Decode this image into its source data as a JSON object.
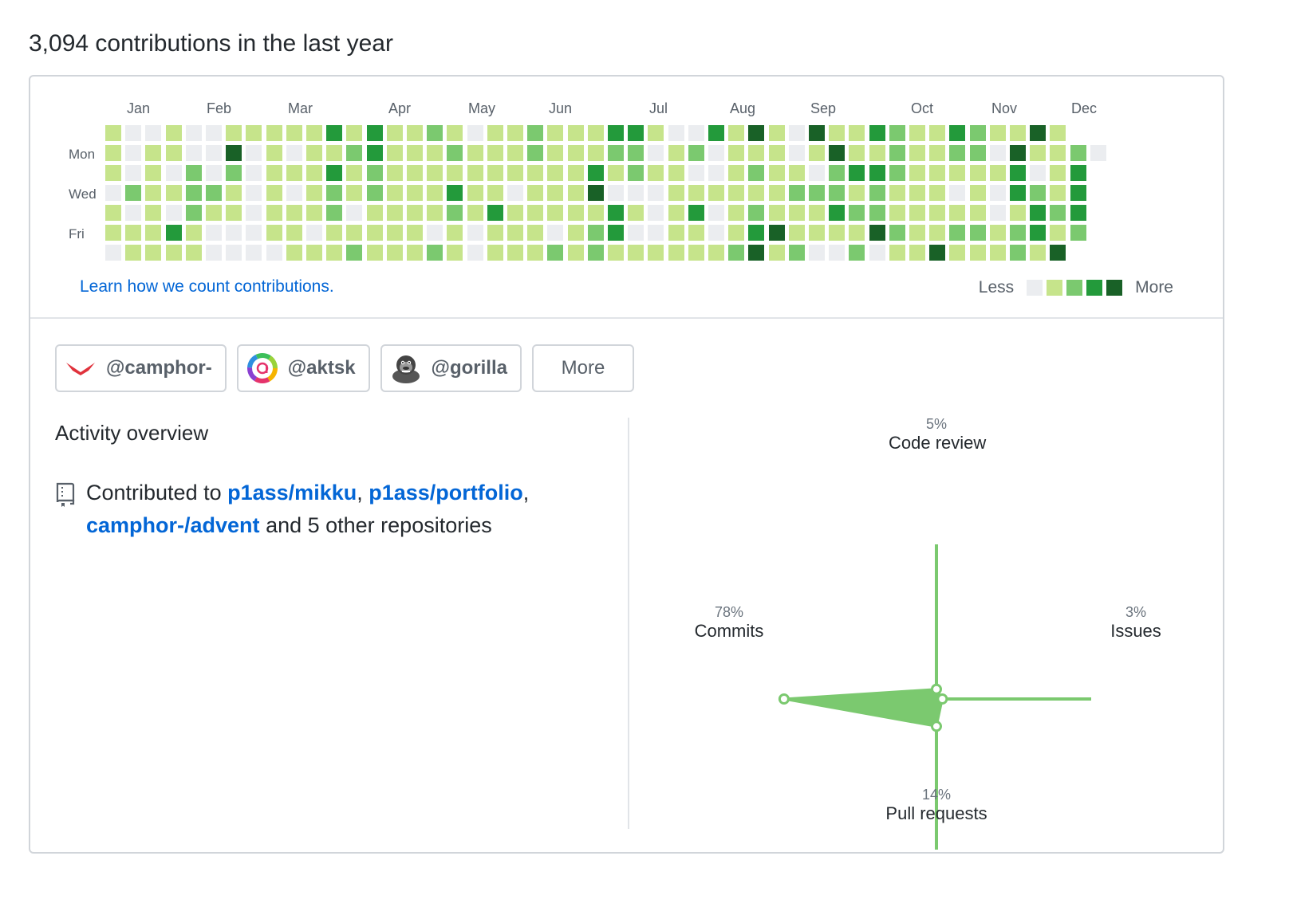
{
  "summary": "3,094 contributions in the last year",
  "months": [
    "Jan",
    "Feb",
    "Mar",
    "Apr",
    "May",
    "Jun",
    "Jul",
    "Aug",
    "Sep",
    "Oct",
    "Nov",
    "Dec"
  ],
  "day_labels": [
    "Mon",
    "Wed",
    "Fri"
  ],
  "learn_link": "Learn how we count contributions.",
  "legend": {
    "less": "Less",
    "more": "More"
  },
  "colors": {
    "level0": "#ebedf0",
    "level1": "#c6e48b",
    "level2": "#7bc96f",
    "level3": "#239a3b",
    "level4": "#196127",
    "link": "#0366d6"
  },
  "contribution_levels": [
    [
      1,
      0,
      0,
      1,
      0,
      0,
      1,
      1,
      1,
      1,
      1,
      3,
      1,
      3,
      1,
      1,
      2,
      1,
      0,
      1,
      1,
      2,
      1,
      1,
      1,
      3,
      3,
      1,
      0,
      0,
      3,
      1,
      4,
      1,
      0,
      4,
      1,
      1,
      3,
      2,
      1,
      1,
      3,
      2,
      1,
      1,
      4,
      1
    ],
    [
      1,
      0,
      1,
      1,
      0,
      0,
      4,
      0,
      1,
      0,
      1,
      1,
      2,
      3,
      1,
      1,
      1,
      2,
      1,
      1,
      1,
      2,
      1,
      1,
      1,
      2,
      2,
      0,
      1,
      2,
      0,
      1,
      1,
      1,
      0,
      1,
      4,
      1,
      1,
      2,
      1,
      1,
      2,
      2,
      0,
      4,
      1,
      1,
      2,
      0
    ],
    [
      1,
      0,
      1,
      0,
      2,
      0,
      2,
      0,
      1,
      1,
      1,
      3,
      1,
      2,
      1,
      1,
      1,
      1,
      1,
      1,
      1,
      1,
      1,
      1,
      3,
      1,
      2,
      1,
      1,
      0,
      0,
      1,
      2,
      1,
      1,
      0,
      2,
      3,
      3,
      2,
      1,
      1,
      1,
      1,
      1,
      3,
      0,
      1,
      3
    ],
    [
      0,
      2,
      1,
      1,
      2,
      2,
      1,
      0,
      1,
      0,
      1,
      2,
      1,
      2,
      1,
      1,
      1,
      3,
      1,
      1,
      0,
      1,
      1,
      1,
      4,
      0,
      0,
      0,
      1,
      1,
      1,
      1,
      1,
      1,
      2,
      2,
      2,
      1,
      2,
      1,
      1,
      1,
      0,
      1,
      0,
      3,
      2,
      1,
      3
    ],
    [
      1,
      0,
      1,
      0,
      2,
      1,
      1,
      0,
      1,
      1,
      1,
      2,
      0,
      1,
      1,
      1,
      1,
      2,
      1,
      3,
      1,
      1,
      1,
      1,
      1,
      3,
      1,
      0,
      1,
      3,
      0,
      1,
      2,
      1,
      1,
      1,
      3,
      2,
      2,
      1,
      1,
      1,
      1,
      1,
      0,
      1,
      3,
      2,
      3
    ],
    [
      1,
      1,
      1,
      3,
      1,
      0,
      0,
      0,
      1,
      1,
      0,
      1,
      1,
      1,
      1,
      1,
      0,
      1,
      0,
      1,
      1,
      1,
      0,
      1,
      2,
      3,
      0,
      0,
      1,
      1,
      0,
      1,
      3,
      4,
      1,
      1,
      1,
      1,
      4,
      2,
      1,
      1,
      2,
      2,
      1,
      2,
      3,
      1,
      2
    ],
    [
      0,
      1,
      1,
      1,
      1,
      0,
      0,
      0,
      0,
      1,
      1,
      1,
      2,
      1,
      1,
      1,
      2,
      1,
      0,
      1,
      1,
      1,
      2,
      1,
      2,
      1,
      1,
      1,
      1,
      1,
      1,
      2,
      4,
      1,
      2,
      0,
      0,
      2,
      0,
      1,
      1,
      4,
      1,
      1,
      1,
      2,
      1,
      4
    ]
  ],
  "orgs": [
    {
      "handle": "@camphor-",
      "icon": "camphor-logo-icon"
    },
    {
      "handle": "@aktsk",
      "icon": "aktsk-logo-icon"
    },
    {
      "handle": "@gorilla",
      "icon": "gorilla-avatar-icon"
    }
  ],
  "orgs_more": "More",
  "activity": {
    "title": "Activity overview",
    "prefix": "Contributed to",
    "repos": [
      "p1ass/mikku",
      "p1ass/portfolio",
      "camphor-/advent"
    ],
    "sep1": ",",
    "sep2": ",",
    "suffix": "and 5 other repositories"
  },
  "chart_data": {
    "type": "radar",
    "axes": [
      {
        "label": "Code review",
        "percent": "5%",
        "value": 5
      },
      {
        "label": "Issues",
        "percent": "3%",
        "value": 3
      },
      {
        "label": "Pull requests",
        "percent": "14%",
        "value": 14
      },
      {
        "label": "Commits",
        "percent": "78%",
        "value": 78
      }
    ],
    "color": "#7bc96f"
  }
}
